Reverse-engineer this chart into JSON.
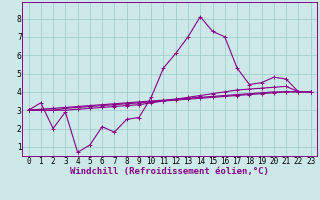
{
  "background_color": "#cce8e8",
  "grid_color": "#99cccc",
  "line_color": "#880088",
  "marker_style": "+",
  "marker_size": 3,
  "line_width": 0.8,
  "xlabel": "Windchill (Refroidissement éolien,°C)",
  "xlabel_fontsize": 6.5,
  "tick_fontsize": 5.5,
  "xlim": [
    -0.5,
    23.5
  ],
  "ylim": [
    0.5,
    8.9
  ],
  "yticks": [
    1,
    2,
    3,
    4,
    5,
    6,
    7,
    8
  ],
  "xticks": [
    0,
    1,
    2,
    3,
    4,
    5,
    6,
    7,
    8,
    9,
    10,
    11,
    12,
    13,
    14,
    15,
    16,
    17,
    18,
    19,
    20,
    21,
    22,
    23
  ],
  "series": [
    [
      3.0,
      3.4,
      2.0,
      2.9,
      0.7,
      1.1,
      2.1,
      1.8,
      2.5,
      2.6,
      3.7,
      5.3,
      6.1,
      7.0,
      8.1,
      7.3,
      7.0,
      5.3,
      4.4,
      4.5,
      4.8,
      4.7,
      4.0,
      4.0
    ],
    [
      3.0,
      3.0,
      3.0,
      3.1,
      3.15,
      3.2,
      3.25,
      3.3,
      3.35,
      3.4,
      3.45,
      3.5,
      3.55,
      3.6,
      3.65,
      3.7,
      3.75,
      3.8,
      3.85,
      3.9,
      3.95,
      4.0,
      4.0,
      4.0
    ],
    [
      3.0,
      3.05,
      3.1,
      3.15,
      3.2,
      3.25,
      3.3,
      3.35,
      3.4,
      3.45,
      3.5,
      3.55,
      3.6,
      3.65,
      3.7,
      3.75,
      3.8,
      3.85,
      3.9,
      3.95,
      4.0,
      4.0,
      4.0,
      4.0
    ],
    [
      3.0,
      3.0,
      3.0,
      3.0,
      3.05,
      3.1,
      3.15,
      3.2,
      3.25,
      3.3,
      3.4,
      3.5,
      3.6,
      3.7,
      3.8,
      3.9,
      4.0,
      4.1,
      4.15,
      4.2,
      4.25,
      4.3,
      4.0,
      4.0
    ]
  ]
}
